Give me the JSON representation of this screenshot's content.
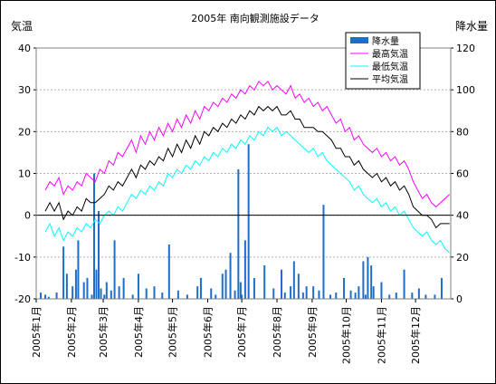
{
  "chart_data": {
    "type": "line",
    "title": "2005年 南向観測施設データ",
    "ylabel_left": "気温",
    "ylabel_right": "降水量",
    "ylim_left": [
      -20,
      40
    ],
    "ylim_right": [
      0,
      120
    ],
    "yticks_left": [
      "40",
      "30",
      "20",
      "10",
      "0",
      "-10",
      "-20"
    ],
    "yticks_right": [
      "120",
      "100",
      "80",
      "60",
      "40",
      "20",
      "0"
    ],
    "xticks": [
      "2005年1月",
      "2005年2月",
      "2005年3月",
      "2005年4月",
      "2005年5月",
      "2005年6月",
      "2005年7月",
      "2005年8月",
      "2005年9月",
      "2005年10月",
      "2005年11月",
      "2005年12月"
    ],
    "grid": true,
    "legend_position": "top-right",
    "legend": [
      "降水量",
      "最高気温",
      "最低気温",
      "平均気温"
    ],
    "colors": {
      "precip": "#1e6ec8",
      "max": "#ff00ff",
      "min": "#00ffff",
      "avg": "#000000"
    },
    "x_note": "series are daily values sampled every ~5 days; x in day-of-year 2005",
    "series": [
      {
        "name": "最高気温",
        "x": [
          9,
          13,
          17,
          21,
          25,
          29,
          33,
          37,
          41,
          45,
          49,
          53,
          57,
          61,
          65,
          69,
          73,
          77,
          81,
          85,
          89,
          93,
          97,
          101,
          105,
          109,
          113,
          117,
          121,
          125,
          129,
          133,
          137,
          141,
          145,
          149,
          153,
          157,
          161,
          165,
          169,
          173,
          177,
          181,
          185,
          189,
          193,
          197,
          201,
          205,
          209,
          213,
          217,
          221,
          225,
          229,
          233,
          237,
          241,
          245,
          249,
          253,
          257,
          261,
          265,
          269,
          273,
          277,
          281,
          285,
          289,
          293,
          297,
          301,
          305,
          309,
          313,
          317,
          321,
          325,
          329,
          333,
          337,
          341,
          345,
          349,
          353,
          357,
          361,
          365
        ],
        "values": [
          6,
          8,
          7,
          9,
          5,
          7,
          6,
          8,
          7,
          10,
          9,
          8,
          11,
          10,
          13,
          12,
          15,
          14,
          16,
          18,
          15,
          19,
          17,
          20,
          18,
          21,
          19,
          22,
          20,
          23,
          21,
          24,
          22,
          25,
          23,
          26,
          25,
          27,
          26,
          28,
          27,
          29,
          28,
          30,
          29,
          31,
          30,
          32,
          31,
          32,
          30,
          31,
          30,
          29,
          31,
          28,
          29,
          27,
          28,
          26,
          27,
          25,
          26,
          24,
          22,
          23,
          20,
          21,
          18,
          19,
          17,
          16,
          15,
          16,
          14,
          15,
          13,
          14,
          12,
          13,
          11,
          8,
          6,
          4,
          5,
          3,
          2,
          3,
          4,
          5
        ]
      },
      {
        "name": "最低気温",
        "x": [
          9,
          13,
          17,
          21,
          25,
          29,
          33,
          37,
          41,
          45,
          49,
          53,
          57,
          61,
          65,
          69,
          73,
          77,
          81,
          85,
          89,
          93,
          97,
          101,
          105,
          109,
          113,
          117,
          121,
          125,
          129,
          133,
          137,
          141,
          145,
          149,
          153,
          157,
          161,
          165,
          169,
          173,
          177,
          181,
          185,
          189,
          193,
          197,
          201,
          205,
          209,
          213,
          217,
          221,
          225,
          229,
          233,
          237,
          241,
          245,
          249,
          253,
          257,
          261,
          265,
          269,
          273,
          277,
          281,
          285,
          289,
          293,
          297,
          301,
          305,
          309,
          313,
          317,
          321,
          325,
          329,
          333,
          337,
          341,
          345,
          349,
          353,
          357,
          361,
          365
        ],
        "values": [
          -4,
          -2,
          -5,
          -3,
          -6,
          -4,
          -5,
          -3,
          -4,
          -2,
          -3,
          -1,
          -2,
          0,
          1,
          0,
          2,
          1,
          3,
          5,
          4,
          6,
          5,
          7,
          6,
          8,
          7,
          10,
          9,
          11,
          10,
          12,
          11,
          13,
          12,
          14,
          13,
          15,
          14,
          16,
          15,
          17,
          16,
          18,
          17,
          19,
          18,
          20,
          19,
          21,
          20,
          21,
          19,
          20,
          19,
          18,
          17,
          16,
          15,
          16,
          14,
          15,
          13,
          12,
          11,
          10,
          9,
          8,
          6,
          7,
          5,
          4,
          3,
          4,
          2,
          3,
          1,
          2,
          0,
          1,
          -1,
          -3,
          -4,
          -5,
          -4,
          -6,
          -7,
          -6,
          -8,
          -9
        ]
      },
      {
        "name": "平均気温",
        "x": [
          9,
          13,
          17,
          21,
          25,
          29,
          33,
          37,
          41,
          45,
          49,
          53,
          57,
          61,
          65,
          69,
          73,
          77,
          81,
          85,
          89,
          93,
          97,
          101,
          105,
          109,
          113,
          117,
          121,
          125,
          129,
          133,
          137,
          141,
          145,
          149,
          153,
          157,
          161,
          165,
          169,
          173,
          177,
          181,
          185,
          189,
          193,
          197,
          201,
          205,
          209,
          213,
          217,
          221,
          225,
          229,
          233,
          237,
          241,
          245,
          249,
          253,
          257,
          261,
          265,
          269,
          273,
          277,
          281,
          285,
          289,
          293,
          297,
          301,
          305,
          309,
          313,
          317,
          321,
          325,
          329,
          333,
          337,
          341,
          345,
          349,
          353,
          357,
          361,
          365
        ],
        "values": [
          1,
          3,
          1,
          3,
          -1,
          1,
          0,
          2,
          1,
          4,
          3,
          3,
          4,
          5,
          7,
          6,
          8,
          7,
          9,
          11,
          9,
          12,
          11,
          13,
          12,
          14,
          13,
          16,
          14,
          17,
          15,
          18,
          16,
          19,
          17,
          20,
          19,
          21,
          20,
          22,
          21,
          23,
          22,
          24,
          23,
          25,
          24,
          26,
          25,
          26,
          25,
          26,
          24,
          24,
          25,
          23,
          23,
          21,
          21,
          21,
          20,
          20,
          19,
          18,
          16,
          16,
          14,
          14,
          12,
          13,
          11,
          10,
          9,
          10,
          8,
          9,
          7,
          8,
          6,
          7,
          5,
          2,
          1,
          0,
          0,
          -1,
          -3,
          -2,
          -2,
          -2
        ]
      },
      {
        "name": "降水量",
        "kind": "bar",
        "axis": "right",
        "x": [
          5,
          9,
          12,
          19,
          25,
          28,
          33,
          36,
          38,
          43,
          46,
          50,
          52,
          54,
          56,
          58,
          61,
          63,
          67,
          70,
          74,
          78,
          86,
          91,
          98,
          105,
          112,
          118,
          126,
          134,
          143,
          146,
          155,
          159,
          165,
          168,
          172,
          176,
          179,
          181,
          182,
          185,
          188,
          193,
          202,
          210,
          217,
          220,
          225,
          228,
          232,
          236,
          239,
          245,
          250,
          254,
          260,
          265,
          272,
          278,
          282,
          285,
          289,
          291,
          293,
          296,
          298,
          305,
          312,
          318,
          325,
          332,
          338,
          344,
          352,
          358
        ],
        "values": [
          3,
          2,
          1,
          3,
          25,
          12,
          6,
          14,
          28,
          8,
          10,
          2,
          60,
          14,
          42,
          5,
          2,
          8,
          4,
          28,
          6,
          10,
          2,
          12,
          5,
          6,
          3,
          26,
          4,
          2,
          6,
          10,
          5,
          2,
          12,
          14,
          22,
          4,
          62,
          8,
          2,
          28,
          74,
          10,
          16,
          5,
          14,
          3,
          6,
          18,
          12,
          3,
          6,
          6,
          4,
          45,
          2,
          3,
          10,
          4,
          3,
          6,
          18,
          2,
          20,
          16,
          6,
          8,
          2,
          3,
          14,
          3,
          5,
          2,
          2,
          10
        ]
      }
    ]
  }
}
